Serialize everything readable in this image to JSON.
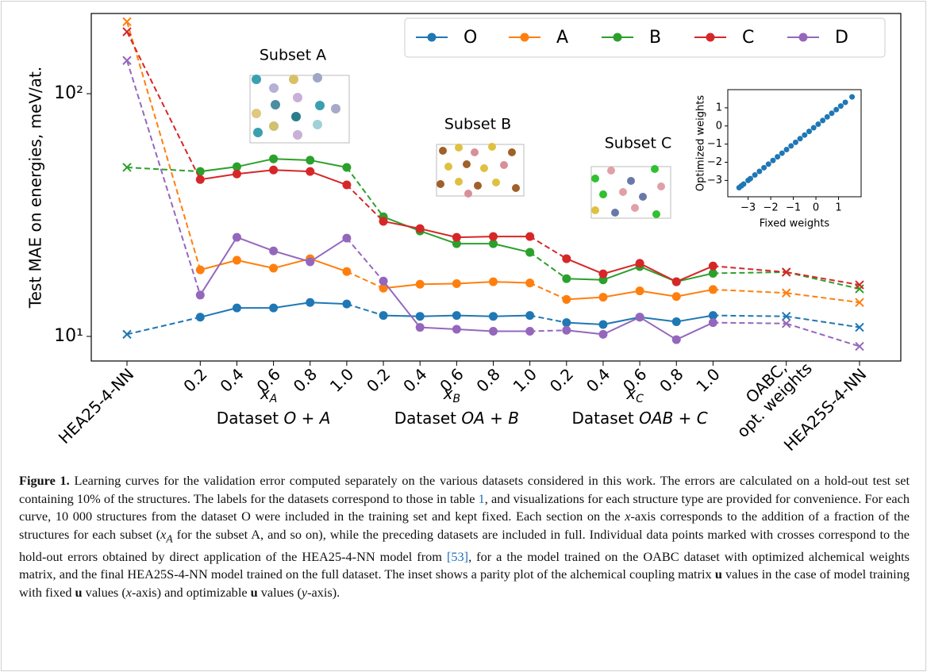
{
  "chart_data": [
    {
      "type": "line",
      "y_label": "Test MAE on energies, meV/at.",
      "log_y": true,
      "categories": [
        "HEA25-4-NN",
        "0.2",
        "0.4",
        "0.6",
        "0.8",
        "1.0",
        "0.2",
        "0.4",
        "0.6",
        "0.8",
        "1.0",
        "0.2",
        "0.4",
        "0.6",
        "0.8",
        "1.0",
        "OABC,\nopt. weights",
        "HEA25S-4-NN"
      ],
      "markers": [
        "x",
        "o",
        "o",
        "o",
        "o",
        "o",
        "o",
        "o",
        "o",
        "o",
        "o",
        "o",
        "o",
        "o",
        "o",
        "o",
        "x",
        "x"
      ],
      "series": [
        {
          "name": "O",
          "color": "#1f77b4",
          "values": [
            10.2,
            12.0,
            13.1,
            13.1,
            13.8,
            13.6,
            12.2,
            12.1,
            12.2,
            12.1,
            12.2,
            11.4,
            11.2,
            12.0,
            11.5,
            12.2,
            12.1,
            10.9
          ]
        },
        {
          "name": "A",
          "color": "#ff7f0e",
          "values": [
            198,
            18.8,
            20.6,
            19.1,
            20.9,
            18.5,
            15.8,
            16.4,
            16.5,
            16.8,
            16.6,
            14.2,
            14.5,
            15.4,
            14.6,
            15.6,
            15.1,
            13.8
          ]
        },
        {
          "name": "B",
          "color": "#2ca02c",
          "values": [
            49.7,
            47.8,
            50.0,
            53.9,
            53.2,
            49.7,
            31.1,
            27.2,
            24.1,
            24.1,
            22.2,
            17.3,
            17.1,
            19.4,
            16.8,
            18.2,
            18.4,
            15.7
          ]
        },
        {
          "name": "C",
          "color": "#d62728",
          "values": [
            180,
            44.3,
            46.7,
            48.5,
            47.8,
            42.1,
            29.8,
            27.8,
            25.6,
            25.8,
            25.8,
            20.9,
            18.1,
            20.0,
            16.8,
            19.5,
            18.4,
            16.3
          ]
        },
        {
          "name": "D",
          "color": "#9467bd",
          "values": [
            137,
            14.8,
            25.6,
            22.5,
            20.3,
            25.4,
            16.9,
            10.9,
            10.7,
            10.5,
            10.5,
            10.6,
            10.2,
            12.0,
            9.7,
            11.4,
            11.3,
            9.1
          ]
        }
      ],
      "ylim": [
        7.92,
        214
      ],
      "yticks": [
        {
          "value": 10,
          "label": "10¹"
        },
        {
          "value": 100,
          "label": "10²"
        }
      ],
      "groups": [
        {
          "symbol": "x",
          "sub": "A",
          "prefix": "Dataset",
          "dataset": "O + A"
        },
        {
          "symbol": "x",
          "sub": "B",
          "prefix": "Dataset",
          "dataset": "OA + B"
        },
        {
          "symbol": "x",
          "sub": "C",
          "prefix": "Dataset",
          "dataset": "OAB + C"
        }
      ],
      "annotations": [
        "Subset A",
        "Subset B",
        "Subset C"
      ],
      "legend": "top-right"
    },
    {
      "type": "scatter",
      "x_label": "Fixed weights",
      "y_label": "Optimized weights",
      "color": "#1f77b4",
      "x": [
        -3.4,
        -3.3,
        -3.2,
        -3.0,
        -2.9,
        -2.7,
        -2.5,
        -2.3,
        -2.1,
        -1.9,
        -1.7,
        -1.5,
        -1.3,
        -1.1,
        -0.9,
        -0.7,
        -0.5,
        -0.3,
        -0.1,
        0.1,
        0.3,
        0.5,
        0.7,
        0.9,
        1.1,
        1.3,
        1.6
      ],
      "y": [
        -3.4,
        -3.3,
        -3.2,
        -3.0,
        -2.9,
        -2.7,
        -2.5,
        -2.3,
        -2.1,
        -1.9,
        -1.7,
        -1.5,
        -1.3,
        -1.1,
        -0.9,
        -0.7,
        -0.5,
        -0.3,
        -0.1,
        0.1,
        0.3,
        0.5,
        0.7,
        0.9,
        1.1,
        1.3,
        1.6
      ],
      "xlim": [
        -3.9,
        2.0
      ],
      "ylim": [
        -3.9,
        2.0
      ],
      "xticks": [
        {
          "value": -3,
          "label": "−3"
        },
        {
          "value": -2,
          "label": "−2"
        },
        {
          "value": -1,
          "label": "−1"
        },
        0,
        1
      ],
      "yticks": [
        {
          "value": -3,
          "label": "−3"
        },
        {
          "value": -2,
          "label": "−2"
        },
        {
          "value": -1,
          "label": "−1"
        },
        0,
        1
      ]
    }
  ],
  "caption": {
    "label": "Figure 1.",
    "segments": [
      "Learning curves for the validation error computed separately on the various datasets considered in this work. The errors are calculated on a hold-out test set containing 10% of the structures. The labels for the datasets correspond to those in table ",
      "1",
      ", and visualizations for each structure type are provided for convenience. For each curve, 10 000 structures from the dataset O were included in the training set and kept fixed. Each section on the ",
      "x",
      "-axis corresponds to the addition of a fraction of the structures for each subset (",
      "x",
      "A",
      " for the subset A, and so on), while the preceding datasets are included in full. Individual data points marked with crosses correspond to the hold-out errors obtained by direct application of the HEA25-4-NN model from ",
      "[53]",
      ", for a the model trained on the OABC dataset with optimized alchemical weights matrix, and the final HEA25S-4-NN model trained on the full dataset. The inset shows a parity plot of the alchemical coupling matrix ",
      "u",
      " values in the case of model training with fixed ",
      "u",
      " values (",
      "x",
      "-axis) and optimizable ",
      "u",
      " values (",
      "y",
      "-axis)."
    ]
  }
}
